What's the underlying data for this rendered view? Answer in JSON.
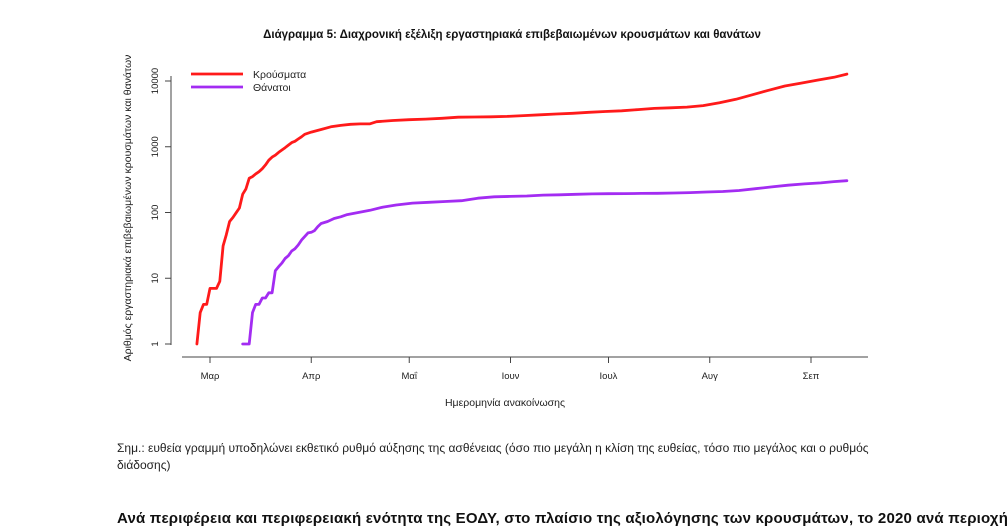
{
  "chart_data": {
    "type": "line",
    "title": "Διάγραμμα 5: Διαχρονική εξέλιξη εργαστηριακά επιβεβαιωμένων κρουσμάτων και θανάτων",
    "xlabel": "Ημερομηνία ανακοίνωσης",
    "ylabel": "Αριθμός εργαστηριακά επιβεβαιωμένων κρουσμάτων και θανάτων",
    "y_scale": "log",
    "ylim": [
      1,
      10000
    ],
    "y_ticks": [
      1,
      10,
      100,
      1000,
      10000
    ],
    "y_tick_labels": [
      "1",
      "10",
      "100",
      "1000",
      "10000"
    ],
    "x_unit": "day of year 2020",
    "xlim": [
      54,
      260
    ],
    "x_ticks": [
      {
        "day": 61,
        "label": "Μαρ"
      },
      {
        "day": 92,
        "label": "Απρ"
      },
      {
        "day": 122,
        "label": "Μαΐ"
      },
      {
        "day": 153,
        "label": "Ιουν"
      },
      {
        "day": 183,
        "label": "Ιουλ"
      },
      {
        "day": 214,
        "label": "Αυγ"
      },
      {
        "day": 245,
        "label": "Σεπ"
      }
    ],
    "legend": {
      "position": "top-left"
    },
    "series": [
      {
        "name": "Κρούσματα",
        "color": "#ff1a1a",
        "points": [
          [
            57,
            1
          ],
          [
            58,
            3
          ],
          [
            59,
            4
          ],
          [
            60,
            4
          ],
          [
            61,
            7
          ],
          [
            62,
            7
          ],
          [
            63,
            7
          ],
          [
            64,
            9
          ],
          [
            65,
            31
          ],
          [
            66,
            46
          ],
          [
            67,
            73
          ],
          [
            68,
            84
          ],
          [
            69,
            99
          ],
          [
            70,
            117
          ],
          [
            71,
            190
          ],
          [
            72,
            228
          ],
          [
            73,
            331
          ],
          [
            74,
            352
          ],
          [
            75,
            387
          ],
          [
            76,
            418
          ],
          [
            77,
            464
          ],
          [
            78,
            530
          ],
          [
            79,
            624
          ],
          [
            80,
            695
          ],
          [
            81,
            743
          ],
          [
            82,
            821
          ],
          [
            83,
            892
          ],
          [
            84,
            966
          ],
          [
            85,
            1061
          ],
          [
            86,
            1156
          ],
          [
            87,
            1212
          ],
          [
            88,
            1314
          ],
          [
            89,
            1415
          ],
          [
            90,
            1544
          ],
          [
            92,
            1673
          ],
          [
            95,
            1832
          ],
          [
            98,
            2011
          ],
          [
            101,
            2114
          ],
          [
            104,
            2192
          ],
          [
            107,
            2224
          ],
          [
            110,
            2235
          ],
          [
            112,
            2404
          ],
          [
            117,
            2506
          ],
          [
            122,
            2576
          ],
          [
            127,
            2632
          ],
          [
            132,
            2710
          ],
          [
            137,
            2810
          ],
          [
            142,
            2837
          ],
          [
            147,
            2853
          ],
          [
            152,
            2892
          ],
          [
            157,
            2980
          ],
          [
            162,
            3058
          ],
          [
            167,
            3148
          ],
          [
            172,
            3227
          ],
          [
            177,
            3343
          ],
          [
            182,
            3432
          ],
          [
            187,
            3519
          ],
          [
            192,
            3672
          ],
          [
            197,
            3826
          ],
          [
            202,
            3910
          ],
          [
            207,
            4012
          ],
          [
            212,
            4227
          ],
          [
            217,
            4662
          ],
          [
            222,
            5270
          ],
          [
            227,
            6177
          ],
          [
            232,
            7222
          ],
          [
            237,
            8381
          ],
          [
            242,
            9280
          ],
          [
            247,
            10317
          ],
          [
            252,
            11386
          ],
          [
            256,
            12734
          ]
        ]
      },
      {
        "name": "Θάνατοι",
        "color": "#a32cf2",
        "points": [
          [
            71,
            1
          ],
          [
            73,
            1
          ],
          [
            74,
            3
          ],
          [
            75,
            4
          ],
          [
            76,
            4
          ],
          [
            77,
            5
          ],
          [
            78,
            5
          ],
          [
            79,
            6
          ],
          [
            80,
            6
          ],
          [
            81,
            13
          ],
          [
            82,
            15
          ],
          [
            83,
            17
          ],
          [
            84,
            20
          ],
          [
            85,
            22
          ],
          [
            86,
            26
          ],
          [
            87,
            28
          ],
          [
            88,
            32
          ],
          [
            89,
            38
          ],
          [
            90,
            43
          ],
          [
            91,
            49
          ],
          [
            92,
            50
          ],
          [
            93,
            53
          ],
          [
            94,
            61
          ],
          [
            95,
            68
          ],
          [
            97,
            73
          ],
          [
            99,
            81
          ],
          [
            101,
            86
          ],
          [
            103,
            93
          ],
          [
            106,
            99
          ],
          [
            110,
            108
          ],
          [
            114,
            121
          ],
          [
            118,
            130
          ],
          [
            123,
            139
          ],
          [
            128,
            143
          ],
          [
            133,
            147
          ],
          [
            138,
            151
          ],
          [
            143,
            165
          ],
          [
            148,
            173
          ],
          [
            153,
            176
          ],
          [
            158,
            178
          ],
          [
            163,
            184
          ],
          [
            168,
            186
          ],
          [
            173,
            189
          ],
          [
            178,
            192
          ],
          [
            183,
            193
          ],
          [
            188,
            194
          ],
          [
            193,
            195
          ],
          [
            198,
            196
          ],
          [
            203,
            198
          ],
          [
            208,
            201
          ],
          [
            213,
            205
          ],
          [
            218,
            209
          ],
          [
            223,
            216
          ],
          [
            228,
            230
          ],
          [
            233,
            245
          ],
          [
            238,
            260
          ],
          [
            243,
            272
          ],
          [
            248,
            282
          ],
          [
            252,
            295
          ],
          [
            256,
            305
          ]
        ]
      }
    ]
  },
  "note": {
    "text": "Σημ.: ευθεία γραμμή υποδηλώνει εκθετικό ρυθμό αύξησης της ασθένειας (όσο πιο μεγάλη η κλίση της ευθείας, τόσο πιο μεγάλος και ο ρυθμός διάδοσης)"
  },
  "cutoff": {
    "text": "Ανά περιφέρεια και περιφερειακή ενότητα της ΕΟΔΥ, στο πλαίσιο της αξιολόγησης των κρουσμάτων, το 2020 ανά περιοχή"
  }
}
